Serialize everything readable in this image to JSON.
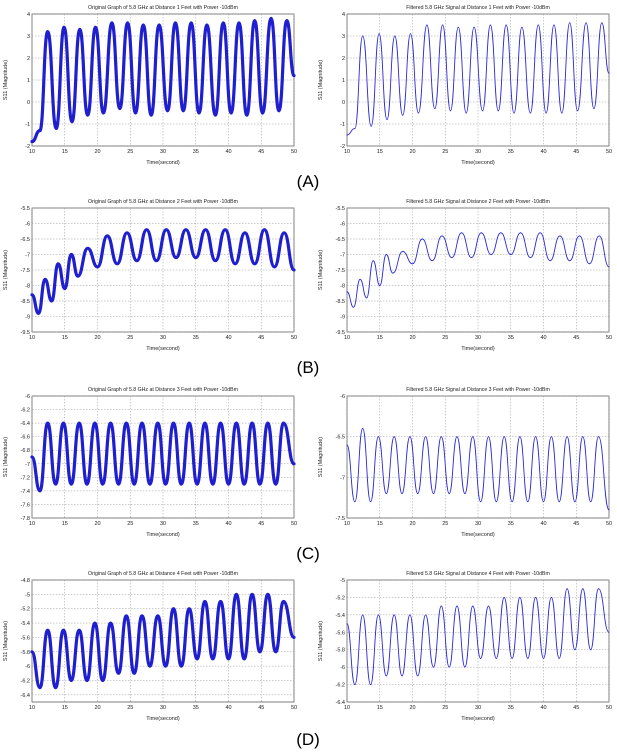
{
  "figure": {
    "panel_labels": [
      "(A)",
      "(B)",
      "(C)",
      "(D)"
    ]
  },
  "chart_data": [
    {
      "type": "line",
      "panel": "(A)",
      "side": "original",
      "noisy": true,
      "title": "Original Graph of 5.8 GHz at Distance 1 Feet with Power -10dBm",
      "xlabel": "Time(second)",
      "ylabel": "S11 (Magnitude)",
      "xlim": [
        10,
        50
      ],
      "ylim": [
        -2,
        4
      ],
      "xticks": [
        10,
        15,
        20,
        25,
        30,
        35,
        40,
        45,
        50
      ],
      "yticks": [
        -2,
        -1,
        0,
        1,
        2,
        3,
        4
      ],
      "grid": true,
      "color": "#1f1fcf",
      "series": [
        {
          "x": [
            10,
            11.2,
            12.4,
            13.7,
            14.9,
            16.1,
            17.3,
            18.5,
            19.7,
            20.9,
            22.2,
            23.4,
            24.6,
            25.8,
            27,
            28.2,
            29.4,
            30.7,
            31.9,
            33.1,
            34.3,
            35.5,
            36.7,
            38,
            39.2,
            40.4,
            41.6,
            42.8,
            44,
            45.2,
            46.5,
            47.7,
            48.9,
            50
          ],
          "y": [
            -1.8,
            -1.3,
            3.2,
            -1.2,
            3.4,
            -0.9,
            3.3,
            -0.6,
            3.4,
            -0.5,
            3.6,
            -0.3,
            3.6,
            -0.5,
            3.5,
            -0.6,
            3.5,
            -0.4,
            3.6,
            -0.4,
            3.6,
            -0.5,
            3.5,
            -0.6,
            3.6,
            -0.5,
            3.6,
            -0.6,
            3.7,
            -0.5,
            3.8,
            -0.4,
            3.7,
            1.2
          ]
        }
      ]
    },
    {
      "type": "line",
      "panel": "(A)",
      "side": "filtered",
      "noisy": false,
      "title": "Filtered 5.8 GHz Signal at Distance 1 Feet with Power -10dBm",
      "xlabel": "Time(second)",
      "ylabel": "S11 (Magnitude)",
      "xlim": [
        10,
        50
      ],
      "ylim": [
        -2,
        4
      ],
      "xticks": [
        10,
        15,
        20,
        25,
        30,
        35,
        40,
        45,
        50
      ],
      "yticks": [
        -2,
        -1,
        0,
        1,
        2,
        3,
        4
      ],
      "grid": true,
      "color": "#2a2ad8",
      "series": [
        {
          "x": [
            10,
            11.2,
            12.4,
            13.7,
            14.9,
            16.1,
            17.3,
            18.5,
            19.7,
            20.9,
            22.2,
            23.4,
            24.6,
            25.8,
            27,
            28.2,
            29.4,
            30.7,
            31.9,
            33.1,
            34.3,
            35.5,
            36.7,
            38,
            39.2,
            40.4,
            41.6,
            42.8,
            44,
            45.2,
            46.5,
            47.7,
            48.9,
            50
          ],
          "y": [
            -1.5,
            -1.2,
            3.0,
            -1.1,
            3.1,
            -0.8,
            3.0,
            -0.6,
            3.1,
            -0.5,
            3.5,
            -0.3,
            3.5,
            -0.4,
            3.4,
            -0.5,
            3.4,
            -0.4,
            3.5,
            -0.4,
            3.5,
            -0.5,
            3.4,
            -0.5,
            3.5,
            -0.5,
            3.5,
            -0.5,
            3.6,
            -0.4,
            3.6,
            -0.3,
            3.6,
            1.3
          ]
        }
      ]
    },
    {
      "type": "line",
      "panel": "(B)",
      "side": "original",
      "noisy": true,
      "title": "Original Graph of 5.8 GHz at Distance 2 Feet with Power -10dBm",
      "xlabel": "Time(second)",
      "ylabel": "S11 (Magnitude)",
      "xlim": [
        10,
        50
      ],
      "ylim": [
        -9.5,
        -5.5
      ],
      "xticks": [
        10,
        15,
        20,
        25,
        30,
        35,
        40,
        45,
        50
      ],
      "yticks": [
        -9.5,
        -9,
        -8.5,
        -8,
        -7.5,
        -7,
        -6.5,
        -6,
        -5.5
      ],
      "grid": true,
      "color": "#1f1fcf",
      "series": [
        {
          "x": [
            10,
            11,
            12,
            13,
            14,
            15,
            16,
            17,
            18.5,
            20,
            21.5,
            23,
            24.5,
            26,
            27.5,
            29,
            30.5,
            32,
            33.5,
            35,
            36.5,
            38,
            39.5,
            41,
            42.5,
            44,
            45.5,
            47,
            48.5,
            50
          ],
          "y": [
            -8.3,
            -8.9,
            -7.8,
            -8.5,
            -7.3,
            -8.1,
            -7.0,
            -7.7,
            -6.8,
            -7.4,
            -6.4,
            -7.3,
            -6.3,
            -7.2,
            -6.2,
            -7.2,
            -6.2,
            -7.1,
            -6.2,
            -7.1,
            -6.2,
            -7.2,
            -6.2,
            -7.3,
            -6.3,
            -7.3,
            -6.2,
            -7.4,
            -6.3,
            -7.5
          ]
        }
      ]
    },
    {
      "type": "line",
      "panel": "(B)",
      "side": "filtered",
      "noisy": false,
      "title": "Filtered 5.8 GHz Signal at Distance 2 Feet with Power -10dBm",
      "xlabel": "Time(second)",
      "ylabel": "S11 (Magnitude)",
      "xlim": [
        10,
        50
      ],
      "ylim": [
        -9.5,
        -5.5
      ],
      "xticks": [
        10,
        15,
        20,
        25,
        30,
        35,
        40,
        45,
        50
      ],
      "yticks": [
        -9.5,
        -9,
        -8.5,
        -8,
        -7.5,
        -7,
        -6.5,
        -6,
        -5.5
      ],
      "grid": true,
      "color": "#2a2ad8",
      "series": [
        {
          "x": [
            10,
            11,
            12,
            13,
            14,
            15,
            16,
            17,
            18.5,
            20,
            21.5,
            23,
            24.5,
            26,
            27.5,
            29,
            30.5,
            32,
            33.5,
            35,
            36.5,
            38,
            39.5,
            41,
            42.5,
            44,
            45.5,
            47,
            48.5,
            50
          ],
          "y": [
            -8.2,
            -8.7,
            -7.8,
            -8.4,
            -7.2,
            -8.0,
            -7.0,
            -7.6,
            -6.9,
            -7.3,
            -6.5,
            -7.2,
            -6.4,
            -7.1,
            -6.3,
            -7.1,
            -6.3,
            -7.0,
            -6.3,
            -7.0,
            -6.3,
            -7.1,
            -6.3,
            -7.2,
            -6.4,
            -7.2,
            -6.4,
            -7.3,
            -6.4,
            -7.4
          ]
        }
      ]
    },
    {
      "type": "line",
      "panel": "(C)",
      "side": "original",
      "noisy": true,
      "title": "Original Graph of 5.8 GHz at Distance 3 Feet with Power -10dBm",
      "xlabel": "Time(second)",
      "ylabel": "S11 (Magnitude)",
      "xlim": [
        10,
        50
      ],
      "ylim": [
        -7.8,
        -6
      ],
      "xticks": [
        10,
        15,
        20,
        25,
        30,
        35,
        40,
        45,
        50
      ],
      "yticks": [
        -7.8,
        -7.6,
        -7.4,
        -7.2,
        -7,
        -6.8,
        -6.6,
        -6.4,
        -6.2,
        -6
      ],
      "grid": true,
      "color": "#1f1fcf",
      "series": [
        {
          "x": [
            10,
            11.2,
            12.4,
            13.6,
            14.8,
            16,
            17.2,
            18.4,
            19.6,
            20.8,
            22,
            23.2,
            24.4,
            25.6,
            26.8,
            28,
            29.2,
            30.4,
            31.6,
            32.8,
            34,
            35.2,
            36.4,
            37.6,
            38.8,
            40,
            41.2,
            42.4,
            43.6,
            44.8,
            46,
            47.2,
            48.4,
            50
          ],
          "y": [
            -6.9,
            -7.4,
            -6.4,
            -7.3,
            -6.4,
            -7.3,
            -6.4,
            -7.3,
            -6.4,
            -7.3,
            -6.4,
            -7.3,
            -6.4,
            -7.3,
            -6.4,
            -7.3,
            -6.4,
            -7.3,
            -6.4,
            -7.3,
            -6.4,
            -7.3,
            -6.4,
            -7.3,
            -6.4,
            -7.3,
            -6.4,
            -7.3,
            -6.4,
            -7.3,
            -6.4,
            -7.3,
            -6.4,
            -7.0
          ]
        }
      ]
    },
    {
      "type": "line",
      "panel": "(C)",
      "side": "filtered",
      "noisy": false,
      "title": "Filtered 5.8 GHz Signal at Distance 3 Feet with Power -10dBm",
      "xlabel": "Time(second)",
      "ylabel": "S11 (Magnitude)",
      "xlim": [
        10,
        50
      ],
      "ylim": [
        -7.5,
        -6
      ],
      "xticks": [
        10,
        15,
        20,
        25,
        30,
        35,
        40,
        45,
        50
      ],
      "yticks": [
        -7.5,
        -7,
        -6.5,
        -6
      ],
      "grid": true,
      "color": "#2a2ad8",
      "series": [
        {
          "x": [
            10,
            11.2,
            12.4,
            13.6,
            14.8,
            16,
            17.2,
            18.4,
            19.6,
            20.8,
            22,
            23.2,
            24.4,
            25.6,
            26.8,
            28,
            29.2,
            30.4,
            31.6,
            32.8,
            34,
            35.2,
            36.4,
            37.6,
            38.8,
            40,
            41.2,
            42.4,
            43.6,
            44.8,
            46,
            47.2,
            48.4,
            50
          ],
          "y": [
            -6.6,
            -7.3,
            -6.4,
            -7.3,
            -6.5,
            -7.2,
            -6.5,
            -7.2,
            -6.5,
            -7.2,
            -6.5,
            -7.2,
            -6.5,
            -7.2,
            -6.5,
            -7.2,
            -6.5,
            -7.3,
            -6.5,
            -7.3,
            -6.5,
            -7.3,
            -6.5,
            -7.3,
            -6.5,
            -7.3,
            -6.5,
            -7.3,
            -6.5,
            -7.3,
            -6.5,
            -7.3,
            -6.5,
            -7.4
          ]
        }
      ]
    },
    {
      "type": "line",
      "panel": "(D)",
      "side": "original",
      "noisy": true,
      "title": "Original Graph of 5.8 GHz at Distance 4 Feet with Power -10dBm",
      "xlabel": "Time(second)",
      "ylabel": "S11 (Magnitude)",
      "xlim": [
        10,
        50
      ],
      "ylim": [
        -6.5,
        -4.8
      ],
      "xticks": [
        10,
        15,
        20,
        25,
        30,
        35,
        40,
        45,
        50
      ],
      "yticks": [
        -6.4,
        -6.2,
        -6,
        -5.8,
        -5.6,
        -5.4,
        -5.2,
        -5,
        -4.8
      ],
      "grid": true,
      "color": "#1f1fcf",
      "series": [
        {
          "x": [
            10,
            11.2,
            12.4,
            13.6,
            14.8,
            16,
            17.2,
            18.4,
            19.6,
            20.8,
            22,
            23.2,
            24.4,
            25.6,
            26.8,
            28,
            29.2,
            30.4,
            31.6,
            32.8,
            34,
            35.2,
            36.4,
            37.6,
            38.8,
            40,
            41.2,
            42.4,
            43.6,
            44.8,
            46,
            47.2,
            48.4,
            50
          ],
          "y": [
            -5.8,
            -6.3,
            -5.5,
            -6.3,
            -5.5,
            -6.2,
            -5.5,
            -6.2,
            -5.4,
            -6.2,
            -5.4,
            -6.1,
            -5.3,
            -6.1,
            -5.3,
            -6.0,
            -5.3,
            -6.0,
            -5.2,
            -6.0,
            -5.2,
            -5.9,
            -5.1,
            -5.9,
            -5.1,
            -5.9,
            -5.0,
            -5.9,
            -5.0,
            -5.8,
            -5.0,
            -5.8,
            -5.1,
            -5.6
          ]
        }
      ]
    },
    {
      "type": "line",
      "panel": "(D)",
      "side": "filtered",
      "noisy": false,
      "title": "Filtered 5.8 GHz Signal at Distance 4 Feet with Power -10dBm",
      "xlabel": "Time(second)",
      "ylabel": "S11 (Magnitude)",
      "xlim": [
        10,
        50
      ],
      "ylim": [
        -6.4,
        -5
      ],
      "xticks": [
        10,
        15,
        20,
        25,
        30,
        35,
        40,
        45,
        50
      ],
      "yticks": [
        -6.4,
        -6.2,
        -6,
        -5.8,
        -5.6,
        -5.4,
        -5.2,
        -5
      ],
      "grid": true,
      "color": "#2a2ad8",
      "series": [
        {
          "x": [
            10,
            11.2,
            12.4,
            13.6,
            14.8,
            16,
            17.2,
            18.4,
            19.6,
            20.8,
            22,
            23.2,
            24.4,
            25.6,
            26.8,
            28,
            29.2,
            30.4,
            31.6,
            32.8,
            34,
            35.2,
            36.4,
            37.6,
            38.8,
            40,
            41.2,
            42.4,
            43.6,
            44.8,
            46,
            47.2,
            48.4,
            50
          ],
          "y": [
            -5.5,
            -6.2,
            -5.4,
            -6.2,
            -5.4,
            -6.1,
            -5.4,
            -6.1,
            -5.4,
            -6.1,
            -5.4,
            -6.0,
            -5.3,
            -6.0,
            -5.3,
            -6.0,
            -5.3,
            -5.9,
            -5.3,
            -5.9,
            -5.2,
            -5.9,
            -5.2,
            -5.9,
            -5.2,
            -5.9,
            -5.2,
            -5.9,
            -5.1,
            -5.8,
            -5.1,
            -5.8,
            -5.1,
            -5.6
          ]
        }
      ]
    }
  ]
}
